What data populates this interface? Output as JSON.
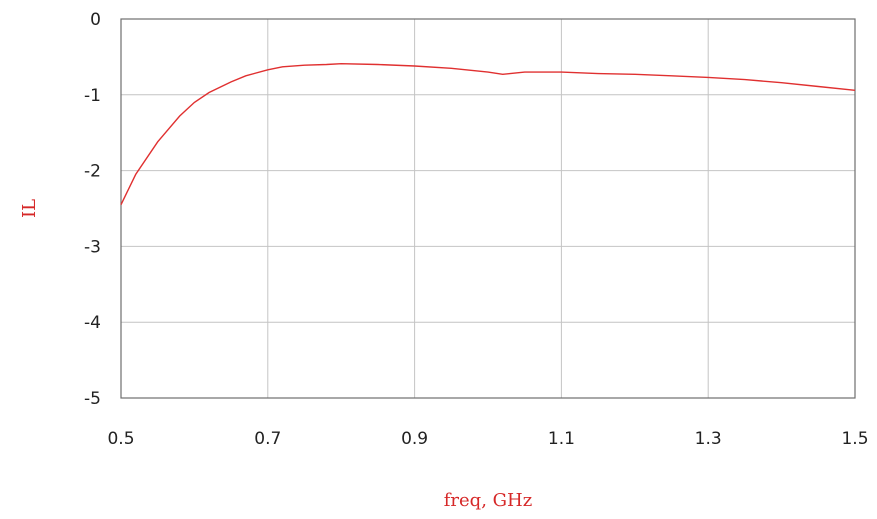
{
  "chart_data": {
    "type": "line",
    "title": "",
    "xlabel": "freq, GHz",
    "ylabel": "IL",
    "xlim": [
      0.5,
      1.5
    ],
    "ylim": [
      -5,
      0
    ],
    "grid": true,
    "line_color": "#e03030",
    "x_ticks": [
      {
        "value": 0.5,
        "label": "0.5"
      },
      {
        "value": 0.7,
        "label": "0.7"
      },
      {
        "value": 0.9,
        "label": "0.9"
      },
      {
        "value": 1.1,
        "label": "1.1"
      },
      {
        "value": 1.3,
        "label": "1.3"
      },
      {
        "value": 1.5,
        "label": "1.5"
      }
    ],
    "y_ticks": [
      {
        "value": 0,
        "label": "0"
      },
      {
        "value": -1,
        "label": "-1"
      },
      {
        "value": -2,
        "label": "-2"
      },
      {
        "value": -3,
        "label": "-3"
      },
      {
        "value": -4,
        "label": "-4"
      },
      {
        "value": -5,
        "label": "-5"
      }
    ],
    "series": [
      {
        "x": [
          0.5,
          0.52,
          0.55,
          0.58,
          0.6,
          0.62,
          0.65,
          0.67,
          0.7,
          0.72,
          0.75,
          0.78,
          0.8,
          0.85,
          0.9,
          0.95,
          1.0,
          1.02,
          1.03,
          1.05,
          1.08,
          1.1,
          1.15,
          1.2,
          1.25,
          1.3,
          1.35,
          1.4,
          1.45,
          1.5
        ],
        "y": [
          -2.45,
          -2.05,
          -1.62,
          -1.28,
          -1.1,
          -0.97,
          -0.83,
          -0.75,
          -0.67,
          -0.63,
          -0.61,
          -0.6,
          -0.59,
          -0.6,
          -0.62,
          -0.65,
          -0.7,
          -0.73,
          -0.72,
          -0.7,
          -0.7,
          -0.7,
          -0.72,
          -0.73,
          -0.75,
          -0.77,
          -0.8,
          -0.84,
          -0.89,
          -0.94
        ]
      }
    ]
  }
}
